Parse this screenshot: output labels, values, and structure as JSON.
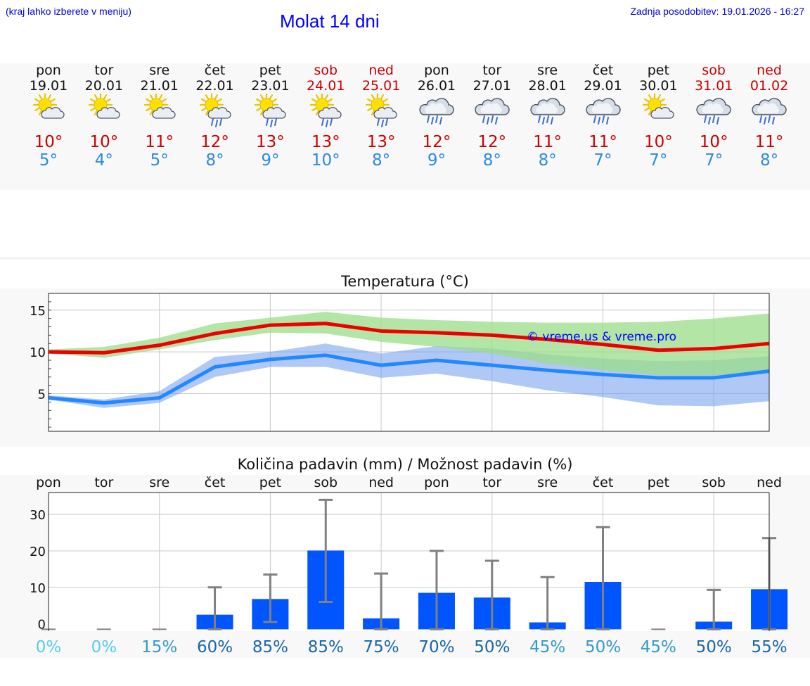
{
  "header": {
    "hint": "(kraj lahko izberete v meniju)",
    "title": "Molat 14 dni",
    "updated": "Zadnja posodobitev: 19.01.2026 - 16:27"
  },
  "days": [
    {
      "name": "pon",
      "date": "19.01",
      "weekend": false,
      "icon": "sun-cloud-icon",
      "tmax": "10°",
      "tmin": "5°"
    },
    {
      "name": "tor",
      "date": "20.01",
      "weekend": false,
      "icon": "sun-cloud-icon",
      "tmax": "10°",
      "tmin": "4°"
    },
    {
      "name": "sre",
      "date": "21.01",
      "weekend": false,
      "icon": "sun-cloud-icon",
      "tmax": "11°",
      "tmin": "5°"
    },
    {
      "name": "čet",
      "date": "22.01",
      "weekend": false,
      "icon": "sun-cloud-rain-icon",
      "tmax": "12°",
      "tmin": "8°"
    },
    {
      "name": "pet",
      "date": "23.01",
      "weekend": false,
      "icon": "sun-cloud-rain-icon",
      "tmax": "13°",
      "tmin": "9°"
    },
    {
      "name": "sob",
      "date": "24.01",
      "weekend": true,
      "icon": "sun-cloud-rain-icon",
      "tmax": "13°",
      "tmin": "10°"
    },
    {
      "name": "ned",
      "date": "25.01",
      "weekend": true,
      "icon": "sun-cloud-rain-icon",
      "tmax": "13°",
      "tmin": "8°"
    },
    {
      "name": "pon",
      "date": "26.01",
      "weekend": false,
      "icon": "cloud-rain-icon",
      "tmax": "12°",
      "tmin": "9°"
    },
    {
      "name": "tor",
      "date": "27.01",
      "weekend": false,
      "icon": "cloud-rain-icon",
      "tmax": "12°",
      "tmin": "8°"
    },
    {
      "name": "sre",
      "date": "28.01",
      "weekend": false,
      "icon": "cloud-rain-icon",
      "tmax": "11°",
      "tmin": "8°"
    },
    {
      "name": "čet",
      "date": "29.01",
      "weekend": false,
      "icon": "cloud-rain-icon",
      "tmax": "11°",
      "tmin": "7°"
    },
    {
      "name": "pet",
      "date": "30.01",
      "weekend": false,
      "icon": "sun-cloud-icon",
      "tmax": "10°",
      "tmin": "7°"
    },
    {
      "name": "sob",
      "date": "31.01",
      "weekend": true,
      "icon": "cloud-rain-icon",
      "tmax": "10°",
      "tmin": "7°"
    },
    {
      "name": "ned",
      "date": "01.02",
      "weekend": true,
      "icon": "cloud-rain-icon",
      "tmax": "11°",
      "tmin": "8°"
    }
  ],
  "colors": {
    "max_line": "#ee0000",
    "min_line": "#2288ff",
    "max_band": "#99dd88",
    "min_band": "#6f9bee",
    "bar": "#0055ff",
    "errbar": "#808080",
    "watermark": "#0000ff"
  },
  "chart_data": [
    {
      "type": "line",
      "title": "Temperatura (°C)",
      "watermark": "© vreme.us & vreme.pro",
      "x": [
        "19.01",
        "20.01",
        "21.01",
        "22.01",
        "23.01",
        "24.01",
        "25.01",
        "26.01",
        "27.01",
        "28.01",
        "29.01",
        "30.01",
        "31.01",
        "01.02"
      ],
      "ylim": [
        0.5,
        17
      ],
      "yticks": [
        5,
        10,
        15
      ],
      "series": [
        {
          "name": "max",
          "values": [
            10,
            9.9,
            10.8,
            12.2,
            13.2,
            13.4,
            12.5,
            12.3,
            12.0,
            11.5,
            10.9,
            10.2,
            10.4,
            11.0
          ],
          "band_low": [
            9.8,
            9.3,
            10.3,
            11.4,
            12.3,
            12.2,
            11.2,
            10.6,
            9.8,
            8.6,
            7.8,
            7.2,
            7.2,
            7.6
          ],
          "band_high": [
            10.3,
            10.6,
            11.7,
            13.4,
            14.1,
            14.8,
            14.1,
            13.8,
            13.6,
            13.5,
            13.5,
            13.6,
            14.0,
            14.6
          ]
        },
        {
          "name": "min",
          "values": [
            4.5,
            3.9,
            4.5,
            8.2,
            9.1,
            9.6,
            8.4,
            9.0,
            8.4,
            7.8,
            7.3,
            6.9,
            6.9,
            7.7
          ],
          "band_low": [
            4.3,
            3.3,
            3.9,
            7.0,
            8.2,
            8.2,
            6.9,
            7.4,
            6.5,
            5.4,
            4.6,
            3.6,
            3.5,
            4.1
          ],
          "band_high": [
            4.8,
            4.3,
            5.3,
            9.4,
            10.0,
            11.0,
            9.8,
            10.7,
            10.4,
            9.7,
            9.2,
            8.9,
            9.0,
            9.5
          ]
        }
      ]
    },
    {
      "type": "bar",
      "title": "Količina padavin (mm) / Možnost padavin (%)",
      "categories": [
        "pon",
        "tor",
        "sre",
        "čet",
        "pet",
        "sob",
        "ned",
        "pon",
        "tor",
        "sre",
        "čet",
        "pet",
        "sob",
        "ned"
      ],
      "values": [
        0,
        0,
        0,
        2.5,
        6.8,
        20.1,
        1.5,
        8.5,
        7.2,
        0.4,
        11.5,
        0,
        0.6,
        9.5
      ],
      "err_low": [
        0,
        0,
        0,
        0,
        0.5,
        6,
        0,
        0,
        0,
        0,
        0,
        0,
        0,
        0
      ],
      "err_high": [
        0,
        0,
        0,
        10,
        13.5,
        34,
        13.8,
        20,
        17.3,
        12.8,
        26.5,
        0,
        9.3,
        23.5
      ],
      "probability": [
        "0%",
        "0%",
        "15%",
        "60%",
        "85%",
        "85%",
        "75%",
        "70%",
        "50%",
        "45%",
        "50%",
        "45%",
        "50%",
        "55%"
      ],
      "probability_colors": [
        "#55ccee",
        "#55ccee",
        "#3399cc",
        "#1a66aa",
        "#1a66aa",
        "#1a66aa",
        "#1a66aa",
        "#1a66aa",
        "#1a66aa",
        "#3399cc",
        "#3399cc",
        "#3399cc",
        "#1a66aa",
        "#1a66aa"
      ],
      "ylim": [
        -2,
        36
      ],
      "yticks": [
        0,
        10,
        20,
        30
      ]
    }
  ]
}
